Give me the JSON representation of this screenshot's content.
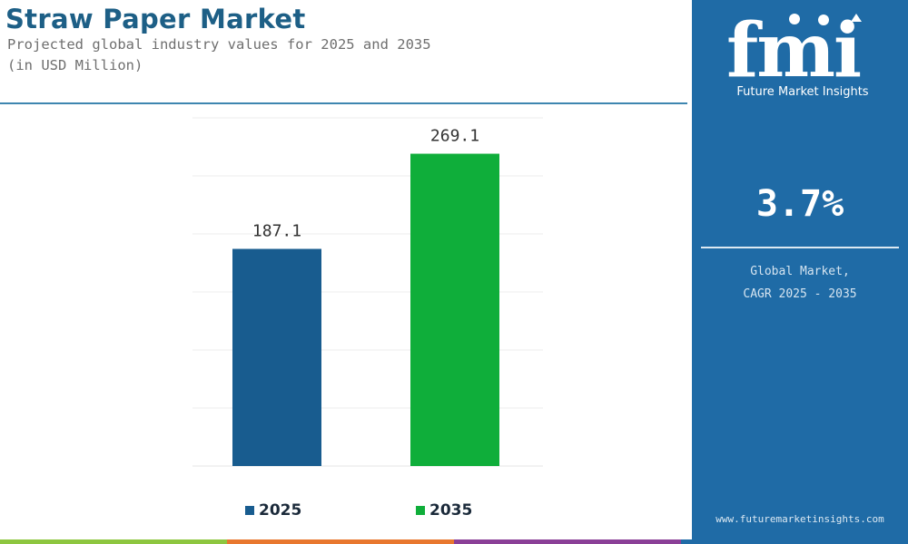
{
  "header": {
    "title": "Straw Paper Market",
    "subtitle_line1": "Projected global industry values for 2025 and 2035",
    "subtitle_line2": "(in USD Million)"
  },
  "chart_data": {
    "type": "bar",
    "categories": [
      "2025",
      "2035"
    ],
    "values": [
      187.1,
      269.1
    ],
    "data_labels": [
      "187.1",
      "269.1"
    ],
    "ylim": [
      0,
      300
    ],
    "grid": true,
    "legend": "bottom",
    "legend_entries": [
      "2025",
      "2035"
    ],
    "colors": [
      "#185c8f",
      "#0fae3a"
    ]
  },
  "side_panel": {
    "logo_text": "fmi",
    "logo_subtitle": "Future Market Insights",
    "cagr_value": "3.7%",
    "cagr_label_line1": "Global Market,",
    "cagr_label_line2": "CAGR 2025 - 2035",
    "website": "www.futuremarketinsights.com",
    "background_color": "#1f6ba6"
  },
  "bottom_strip_colors": [
    "#8dc63f",
    "#e8772e",
    "#8a3f97",
    "#1f6ba6"
  ]
}
